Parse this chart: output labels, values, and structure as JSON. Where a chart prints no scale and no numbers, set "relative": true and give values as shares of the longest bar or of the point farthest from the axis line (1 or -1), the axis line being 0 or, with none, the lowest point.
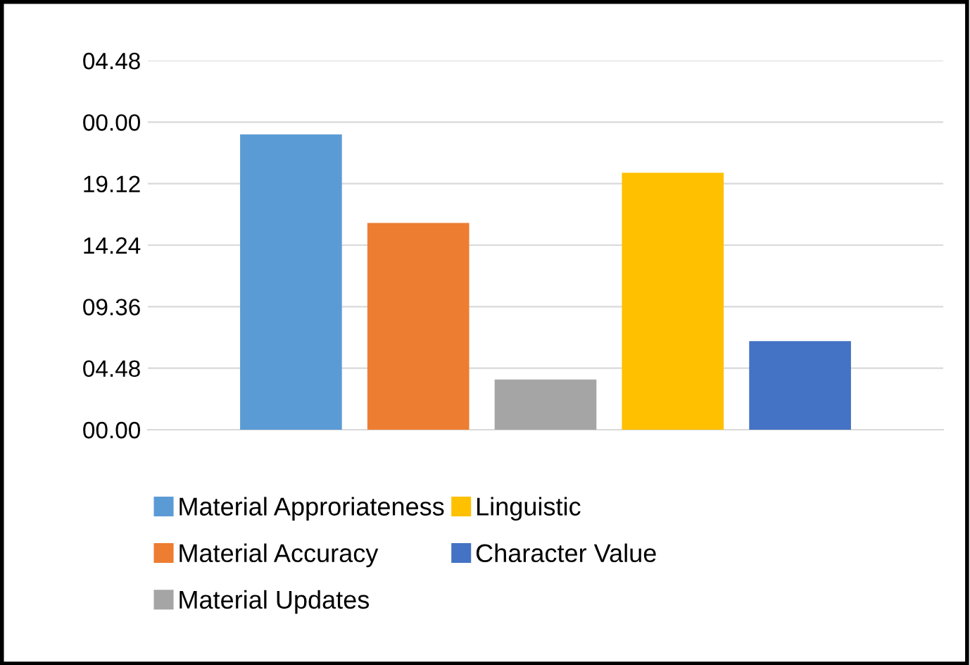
{
  "chart_data": {
    "type": "bar",
    "categories": [
      null
    ],
    "relative": true,
    "series": [
      {
        "name": "Material Approriateness",
        "color": "#5b9bd5",
        "values": [
          1
        ]
      },
      {
        "name": "Material Accuracy",
        "color": "#ed7d31",
        "values": [
          0.7
        ]
      },
      {
        "name": "Material Updates",
        "color": "#a5a5a5",
        "values": [
          0.17
        ]
      },
      {
        "name": "Linguistic",
        "color": "#ffc000",
        "values": [
          0.87
        ]
      },
      {
        "name": "Character Value",
        "color": "#4472c4",
        "values": [
          0.3
        ]
      }
    ],
    "ylim": [
      0,
      1.25
    ],
    "annotations": [
      "00.00",
      "04.48",
      "09.36",
      "14.24",
      "19.12",
      "00.00",
      "04.48"
    ],
    "grid": "y",
    "legend": "bottom"
  }
}
